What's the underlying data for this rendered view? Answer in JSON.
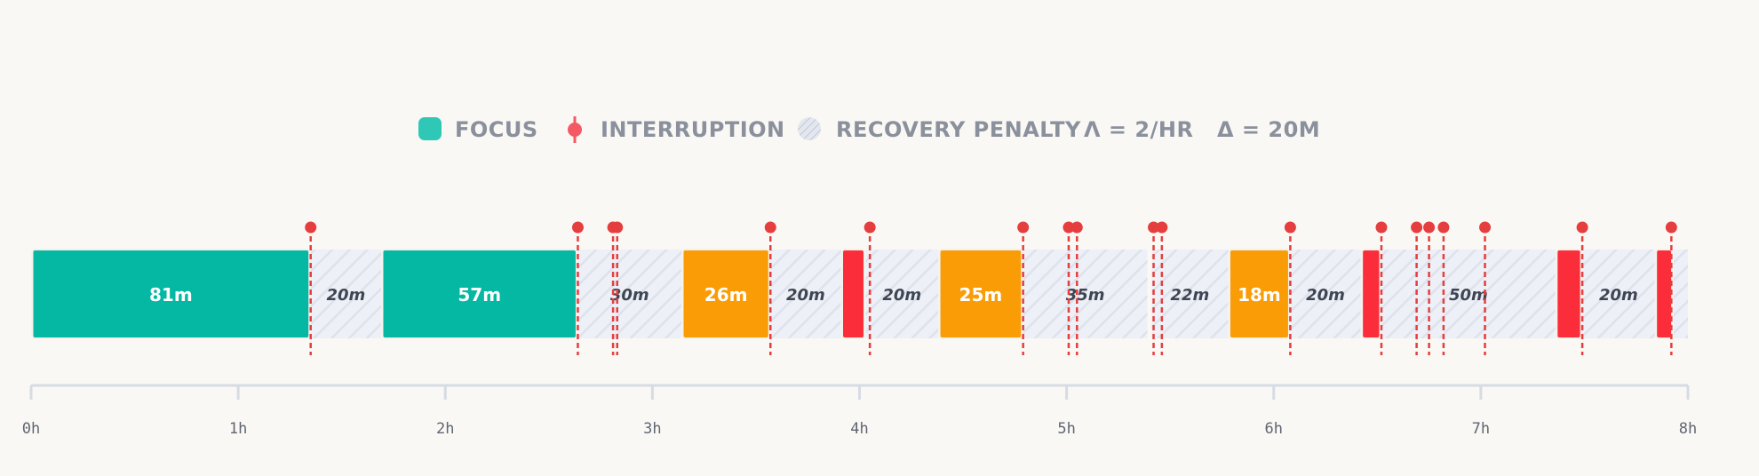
{
  "legend": {
    "focus_label": "FOCUS",
    "interruption_label": "INTERRUPTION",
    "penalty_label": "RECOVERY PENALTY",
    "lambda_text": "Λ = 2/HR",
    "delta_text": "Δ = 20M"
  },
  "colors": {
    "long_focus": "#05b8a3",
    "medium_focus": "#f99c05",
    "short_focus": "#fc2d3b",
    "interruption": "#e53e3e",
    "legend_focus": "#2fc7b6",
    "legend_interruption": "#f45a64",
    "penalty_fill": "#e8ebf2",
    "penalty_stroke": "#d3d8e4",
    "axis": "#d6dbe4",
    "background": "#faf8f4"
  },
  "chart_data": {
    "type": "timeline",
    "x_unit": "hours",
    "xlim": [
      0,
      8
    ],
    "ticks": [
      "0h",
      "1h",
      "2h",
      "3h",
      "4h",
      "5h",
      "6h",
      "7h",
      "8h"
    ],
    "focus_blocks": [
      {
        "start": 0.0,
        "end": 1.35,
        "label": "81m",
        "category": "long"
      },
      {
        "start": 1.69,
        "end": 2.64,
        "label": "57m",
        "category": "long"
      },
      {
        "start": 3.14,
        "end": 3.57,
        "label": "26m",
        "category": "medium"
      },
      {
        "start": 3.91,
        "end": 4.03,
        "label": "",
        "category": "short"
      },
      {
        "start": 4.38,
        "end": 4.79,
        "label": "25m",
        "category": "medium"
      },
      {
        "start": 5.78,
        "end": 6.08,
        "label": "18m",
        "category": "medium"
      },
      {
        "start": 6.42,
        "end": 6.52,
        "label": "",
        "category": "short"
      },
      {
        "start": 7.36,
        "end": 7.49,
        "label": "",
        "category": "short"
      },
      {
        "start": 7.84,
        "end": 7.93,
        "label": "",
        "category": "short"
      }
    ],
    "penalty_blocks": [
      {
        "start": 1.35,
        "end": 1.69,
        "label": "20m"
      },
      {
        "start": 2.64,
        "end": 3.14,
        "label": "30m"
      },
      {
        "start": 3.57,
        "end": 3.91,
        "label": "20m"
      },
      {
        "start": 4.03,
        "end": 4.38,
        "label": "20m"
      },
      {
        "start": 4.79,
        "end": 5.39,
        "label": "35m"
      },
      {
        "start": 5.41,
        "end": 5.78,
        "label": "22m"
      },
      {
        "start": 6.08,
        "end": 6.42,
        "label": "20m"
      },
      {
        "start": 6.52,
        "end": 7.36,
        "label": "50m"
      },
      {
        "start": 7.49,
        "end": 7.84,
        "label": "20m"
      },
      {
        "start": 7.93,
        "end": 8.0,
        "label": ""
      }
    ],
    "interruptions": [
      1.35,
      2.64,
      2.81,
      2.83,
      3.57,
      4.05,
      4.79,
      5.01,
      5.05,
      5.42,
      5.46,
      6.08,
      6.52,
      6.69,
      6.75,
      6.82,
      7.02,
      7.49,
      7.92
    ]
  }
}
